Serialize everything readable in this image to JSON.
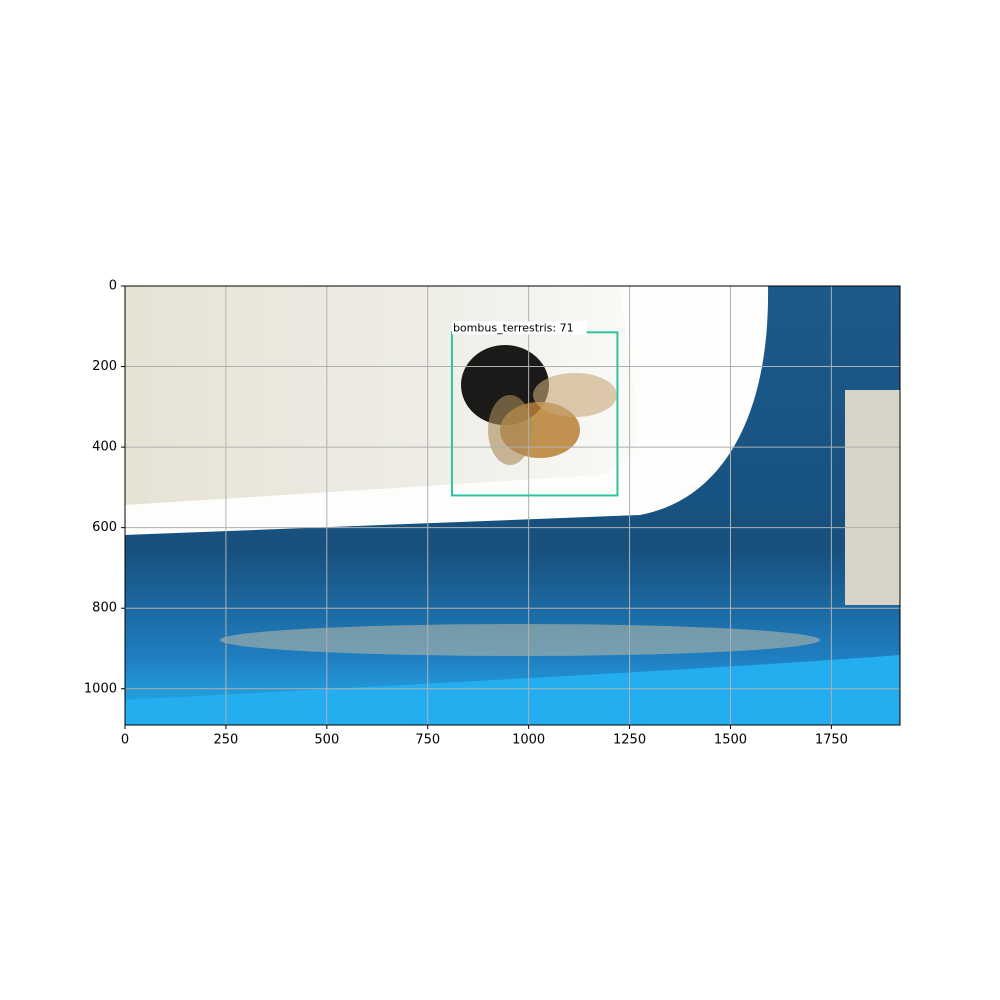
{
  "chart_data": {
    "type": "image",
    "xlim": [
      0,
      1920
    ],
    "ylim": [
      1090,
      0
    ],
    "xticks": [
      0,
      250,
      500,
      750,
      1000,
      1250,
      1500,
      1750
    ],
    "yticks": [
      0,
      200,
      400,
      600,
      800,
      1000
    ],
    "grid": true,
    "annotations": [
      {
        "label": "bombus_terrestris: 71",
        "x": [
          810,
          1220
        ],
        "y": [
          115,
          520
        ],
        "color": "#2ec4a0"
      }
    ]
  }
}
